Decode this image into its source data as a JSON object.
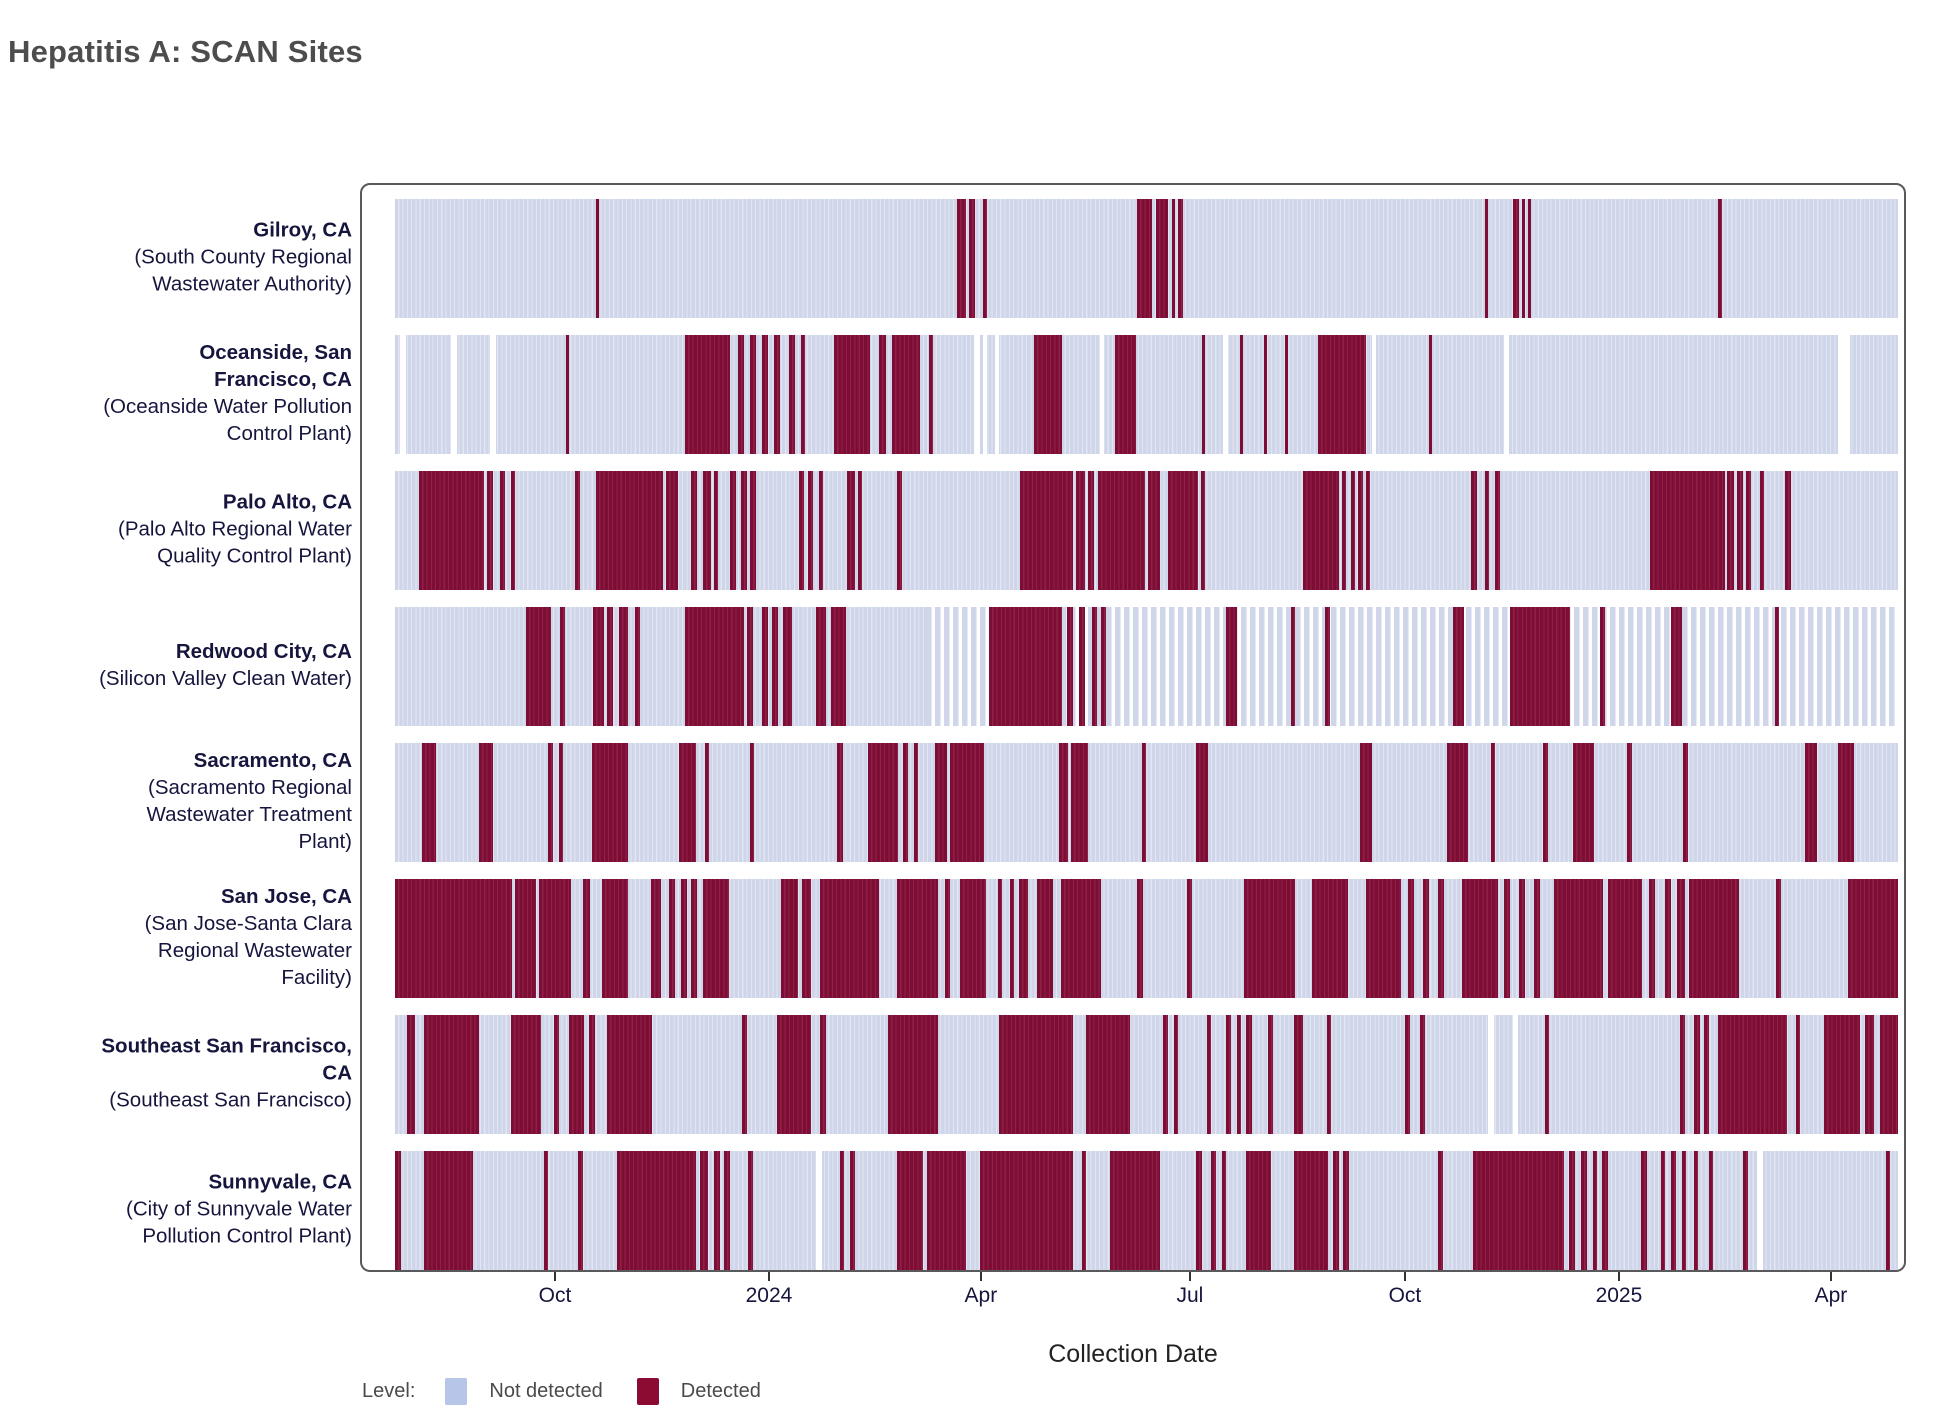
{
  "title": "Hepatitis A: SCAN Sites",
  "axis": {
    "x_label": "Collection Date",
    "ticks": [
      {
        "label": "Oct",
        "pos": 0.1075
      },
      {
        "label": "2024",
        "pos": 0.2495
      },
      {
        "label": "Apr",
        "pos": 0.3901
      },
      {
        "label": "Jul",
        "pos": 0.5288
      },
      {
        "label": "Oct",
        "pos": 0.6715
      },
      {
        "label": "2025",
        "pos": 0.8135
      },
      {
        "label": "Apr",
        "pos": 0.9542
      }
    ]
  },
  "legend": {
    "label": "Level:",
    "items": [
      {
        "key": "not_detected",
        "label": "Not detected",
        "color": "#b7c5e8"
      },
      {
        "key": "detected",
        "label": "Detected",
        "color": "#8b0b33"
      }
    ]
  },
  "colors": {
    "detected": "#7e0d35",
    "detected_separator": "#8f2147",
    "not_detected": "#cfd6e9",
    "not_detected_separator": "#e2e6f3",
    "no_data": "#ffffff",
    "panel_border": "#59595b",
    "title_text": "#4d4d4d",
    "axis_text": "#15153d",
    "legend_text": "#4a4a4a"
  },
  "chart_data": {
    "type": "heatmap",
    "x_domain_note": "time axis approx Jul 2023 - Apr 2025; segment positions are fractions 0-1 of plot width",
    "value_levels": [
      "Not detected",
      "Detected"
    ],
    "sites": [
      {
        "site": "Gilroy, CA",
        "facility": "(South County Regional Wastewater Authority)",
        "detected": [
          [
            0.134,
            0.136
          ],
          [
            0.374,
            0.38
          ],
          [
            0.382,
            0.386
          ],
          [
            0.391,
            0.394
          ],
          [
            0.494,
            0.504
          ],
          [
            0.506,
            0.514
          ],
          [
            0.517,
            0.519
          ],
          [
            0.521,
            0.524
          ],
          [
            0.725,
            0.727
          ],
          [
            0.744,
            0.748
          ],
          [
            0.75,
            0.752
          ],
          [
            0.754,
            0.756
          ],
          [
            0.88,
            0.883
          ]
        ],
        "gaps": [],
        "sparse": []
      },
      {
        "site": "Oceanside, San Francisco, CA",
        "facility": "(Oceanside Water Pollution Control Plant)",
        "detected": [
          [
            0.114,
            0.116
          ],
          [
            0.193,
            0.223
          ],
          [
            0.228,
            0.232
          ],
          [
            0.236,
            0.24
          ],
          [
            0.244,
            0.248
          ],
          [
            0.252,
            0.256
          ],
          [
            0.262,
            0.266
          ],
          [
            0.27,
            0.273
          ],
          [
            0.292,
            0.316
          ],
          [
            0.322,
            0.327
          ],
          [
            0.331,
            0.349
          ],
          [
            0.355,
            0.358
          ],
          [
            0.425,
            0.444
          ],
          [
            0.479,
            0.493
          ],
          [
            0.537,
            0.539
          ],
          [
            0.562,
            0.564
          ],
          [
            0.578,
            0.58
          ],
          [
            0.592,
            0.594
          ],
          [
            0.614,
            0.646
          ],
          [
            0.688,
            0.69
          ]
        ],
        "gaps": [
          [
            0.003,
            0.007
          ],
          [
            0.037,
            0.041
          ],
          [
            0.063,
            0.067
          ],
          [
            0.385,
            0.389
          ],
          [
            0.391,
            0.394
          ],
          [
            0.399,
            0.402
          ],
          [
            0.469,
            0.472
          ],
          [
            0.551,
            0.554
          ],
          [
            0.65,
            0.653
          ],
          [
            0.738,
            0.741
          ],
          [
            0.96,
            0.968
          ]
        ],
        "sparse": []
      },
      {
        "site": "Palo Alto, CA",
        "facility": "(Palo Alto Regional Water Quality Control Plant)",
        "detected": [
          [
            0.016,
            0.059
          ],
          [
            0.061,
            0.065
          ],
          [
            0.07,
            0.073
          ],
          [
            0.077,
            0.08
          ],
          [
            0.12,
            0.123
          ],
          [
            0.134,
            0.178
          ],
          [
            0.18,
            0.188
          ],
          [
            0.197,
            0.201
          ],
          [
            0.205,
            0.21
          ],
          [
            0.212,
            0.215
          ],
          [
            0.223,
            0.227
          ],
          [
            0.23,
            0.234
          ],
          [
            0.236,
            0.24
          ],
          [
            0.269,
            0.272
          ],
          [
            0.275,
            0.278
          ],
          [
            0.282,
            0.285
          ],
          [
            0.301,
            0.306
          ],
          [
            0.308,
            0.311
          ],
          [
            0.334,
            0.337
          ],
          [
            0.416,
            0.451
          ],
          [
            0.453,
            0.459
          ],
          [
            0.461,
            0.465
          ],
          [
            0.468,
            0.499
          ],
          [
            0.501,
            0.509
          ],
          [
            0.514,
            0.534
          ],
          [
            0.536,
            0.539
          ],
          [
            0.604,
            0.628
          ],
          [
            0.63,
            0.633
          ],
          [
            0.636,
            0.639
          ],
          [
            0.641,
            0.644
          ],
          [
            0.646,
            0.649
          ],
          [
            0.716,
            0.72
          ],
          [
            0.725,
            0.728
          ],
          [
            0.732,
            0.735
          ],
          [
            0.835,
            0.885
          ],
          [
            0.886,
            0.891
          ],
          [
            0.893,
            0.897
          ],
          [
            0.899,
            0.902
          ],
          [
            0.908,
            0.911
          ],
          [
            0.925,
            0.929
          ]
        ],
        "gaps": [],
        "sparse": []
      },
      {
        "site": "Redwood City, CA",
        "facility": "(Silicon Valley Clean Water)",
        "detected": [
          [
            0.087,
            0.104
          ],
          [
            0.11,
            0.113
          ],
          [
            0.132,
            0.139
          ],
          [
            0.141,
            0.145
          ],
          [
            0.149,
            0.155
          ],
          [
            0.16,
            0.163
          ],
          [
            0.193,
            0.232
          ],
          [
            0.234,
            0.238
          ],
          [
            0.244,
            0.248
          ],
          [
            0.251,
            0.255
          ],
          [
            0.258,
            0.264
          ],
          [
            0.28,
            0.287
          ],
          [
            0.29,
            0.3
          ],
          [
            0.395,
            0.444
          ],
          [
            0.447,
            0.451
          ],
          [
            0.455,
            0.459
          ],
          [
            0.464,
            0.467
          ],
          [
            0.47,
            0.473
          ],
          [
            0.553,
            0.56
          ],
          [
            0.596,
            0.599
          ],
          [
            0.619,
            0.622
          ],
          [
            0.704,
            0.711
          ],
          [
            0.742,
            0.782
          ],
          [
            0.802,
            0.805
          ],
          [
            0.849,
            0.856
          ],
          [
            0.918,
            0.921
          ]
        ],
        "gaps": [],
        "sparse": [
          [
            0.353,
            1.0
          ]
        ]
      },
      {
        "site": "Sacramento, CA",
        "facility": "(Sacramento Regional Wastewater Treatment Plant)",
        "detected": [
          [
            0.018,
            0.027
          ],
          [
            0.056,
            0.065
          ],
          [
            0.102,
            0.105
          ],
          [
            0.109,
            0.112
          ],
          [
            0.131,
            0.155
          ],
          [
            0.189,
            0.2
          ],
          [
            0.206,
            0.209
          ],
          [
            0.236,
            0.239
          ],
          [
            0.294,
            0.298
          ],
          [
            0.315,
            0.335
          ],
          [
            0.338,
            0.341
          ],
          [
            0.345,
            0.348
          ],
          [
            0.359,
            0.367
          ],
          [
            0.369,
            0.392
          ],
          [
            0.442,
            0.448
          ],
          [
            0.45,
            0.461
          ],
          [
            0.497,
            0.5
          ],
          [
            0.533,
            0.541
          ],
          [
            0.642,
            0.65
          ],
          [
            0.7,
            0.714
          ],
          [
            0.729,
            0.732
          ],
          [
            0.764,
            0.767
          ],
          [
            0.784,
            0.798
          ],
          [
            0.82,
            0.823
          ],
          [
            0.857,
            0.86
          ],
          [
            0.938,
            0.946
          ],
          [
            0.96,
            0.971
          ]
        ],
        "gaps": [],
        "sparse": []
      },
      {
        "site": "San Jose, CA",
        "facility": "(San Jose-Santa Clara Regional Wastewater Facility)",
        "detected": [
          [
            0.0,
            0.078
          ],
          [
            0.08,
            0.094
          ],
          [
            0.096,
            0.117
          ],
          [
            0.125,
            0.13
          ],
          [
            0.138,
            0.155
          ],
          [
            0.17,
            0.177
          ],
          [
            0.182,
            0.186
          ],
          [
            0.19,
            0.194
          ],
          [
            0.197,
            0.201
          ],
          [
            0.205,
            0.222
          ],
          [
            0.257,
            0.268
          ],
          [
            0.271,
            0.277
          ],
          [
            0.283,
            0.322
          ],
          [
            0.334,
            0.361
          ],
          [
            0.366,
            0.369
          ],
          [
            0.376,
            0.393
          ],
          [
            0.401,
            0.404
          ],
          [
            0.409,
            0.412
          ],
          [
            0.415,
            0.421
          ],
          [
            0.427,
            0.438
          ],
          [
            0.443,
            0.47
          ],
          [
            0.494,
            0.498
          ],
          [
            0.527,
            0.53
          ],
          [
            0.565,
            0.599
          ],
          [
            0.61,
            0.634
          ],
          [
            0.646,
            0.669
          ],
          [
            0.674,
            0.678
          ],
          [
            0.684,
            0.688
          ],
          [
            0.694,
            0.698
          ],
          [
            0.71,
            0.734
          ],
          [
            0.738,
            0.742
          ],
          [
            0.748,
            0.752
          ],
          [
            0.758,
            0.762
          ],
          [
            0.771,
            0.804
          ],
          [
            0.807,
            0.83
          ],
          [
            0.834,
            0.838
          ],
          [
            0.845,
            0.849
          ],
          [
            0.853,
            0.858
          ],
          [
            0.861,
            0.894
          ],
          [
            0.919,
            0.922
          ],
          [
            0.967,
            1.0
          ]
        ],
        "gaps": [],
        "sparse": []
      },
      {
        "site": "Southeast San Francisco, CA",
        "facility": "(Southeast San Francisco)",
        "detected": [
          [
            0.008,
            0.013
          ],
          [
            0.019,
            0.056
          ],
          [
            0.077,
            0.097
          ],
          [
            0.106,
            0.109
          ],
          [
            0.116,
            0.126
          ],
          [
            0.129,
            0.133
          ],
          [
            0.141,
            0.171
          ],
          [
            0.231,
            0.234
          ],
          [
            0.254,
            0.277
          ],
          [
            0.283,
            0.287
          ],
          [
            0.328,
            0.361
          ],
          [
            0.402,
            0.451
          ],
          [
            0.46,
            0.489
          ],
          [
            0.511,
            0.514
          ],
          [
            0.518,
            0.521
          ],
          [
            0.54,
            0.543
          ],
          [
            0.553,
            0.556
          ],
          [
            0.56,
            0.563
          ],
          [
            0.566,
            0.57
          ],
          [
            0.581,
            0.584
          ],
          [
            0.598,
            0.604
          ],
          [
            0.62,
            0.623
          ],
          [
            0.672,
            0.675
          ],
          [
            0.682,
            0.685
          ],
          [
            0.765,
            0.768
          ],
          [
            0.855,
            0.858
          ],
          [
            0.864,
            0.868
          ],
          [
            0.871,
            0.874
          ],
          [
            0.88,
            0.926
          ],
          [
            0.932,
            0.935
          ],
          [
            0.951,
            0.975
          ],
          [
            0.978,
            0.984
          ],
          [
            0.988,
            1.0
          ]
        ],
        "gaps": [
          [
            0.727,
            0.731
          ],
          [
            0.744,
            0.747
          ]
        ],
        "sparse": []
      },
      {
        "site": "Sunnyvale, CA",
        "facility": "(City of Sunnyvale Water Pollution Control Plant)",
        "detected": [
          [
            0.0,
            0.004
          ],
          [
            0.019,
            0.052
          ],
          [
            0.099,
            0.102
          ],
          [
            0.122,
            0.125
          ],
          [
            0.148,
            0.2
          ],
          [
            0.203,
            0.208
          ],
          [
            0.212,
            0.216
          ],
          [
            0.219,
            0.223
          ],
          [
            0.235,
            0.238
          ],
          [
            0.296,
            0.299
          ],
          [
            0.303,
            0.306
          ],
          [
            0.334,
            0.351
          ],
          [
            0.354,
            0.38
          ],
          [
            0.389,
            0.451
          ],
          [
            0.457,
            0.46
          ],
          [
            0.476,
            0.509
          ],
          [
            0.533,
            0.537
          ],
          [
            0.543,
            0.546
          ],
          [
            0.55,
            0.553
          ],
          [
            0.566,
            0.583
          ],
          [
            0.598,
            0.621
          ],
          [
            0.624,
            0.628
          ],
          [
            0.631,
            0.635
          ],
          [
            0.694,
            0.697
          ],
          [
            0.717,
            0.778
          ],
          [
            0.781,
            0.785
          ],
          [
            0.789,
            0.793
          ],
          [
            0.797,
            0.8
          ],
          [
            0.803,
            0.807
          ],
          [
            0.829,
            0.833
          ],
          [
            0.842,
            0.845
          ],
          [
            0.849,
            0.852
          ],
          [
            0.856,
            0.859
          ],
          [
            0.864,
            0.867
          ],
          [
            0.874,
            0.877
          ],
          [
            0.897,
            0.9
          ],
          [
            0.992,
            0.995
          ]
        ],
        "gaps": [
          [
            0.28,
            0.284
          ],
          [
            0.906,
            0.91
          ]
        ],
        "sparse": []
      }
    ]
  }
}
